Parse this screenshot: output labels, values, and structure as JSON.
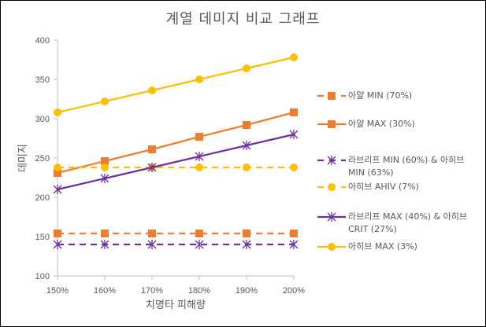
{
  "chart_data": {
    "type": "line",
    "title": "계열 데미지 비교 그래프",
    "xlabel": "치명타 피해량",
    "ylabel": "데미지",
    "categories": [
      "150%",
      "160%",
      "170%",
      "180%",
      "190%",
      "200%"
    ],
    "ylim": [
      100,
      400
    ],
    "yticks": [
      100,
      150,
      200,
      250,
      300,
      350,
      400
    ],
    "grid": false,
    "legend_position": "right",
    "series": [
      {
        "name": "아얄 MIN (70%)",
        "color": "#ED7D31",
        "dash": true,
        "marker": "square",
        "values": [
          154,
          154,
          154,
          154,
          154,
          154
        ]
      },
      {
        "name": "아얄 MAX (30%)",
        "color": "#ED7D31",
        "dash": false,
        "marker": "square",
        "values": [
          231,
          246,
          261,
          277,
          292,
          308
        ]
      },
      {
        "name": "라브리프 MIN (60%) & 아히브 MIN (63%)",
        "color": "#7030A0",
        "dash": true,
        "marker": "star",
        "values": [
          140,
          140,
          140,
          140,
          140,
          140
        ]
      },
      {
        "name": "아히브 AHIV (7%)",
        "color": "#FFC000",
        "dash": true,
        "marker": "circle",
        "values": [
          238,
          238,
          238,
          238,
          238,
          238
        ]
      },
      {
        "name": "라브리프 MAX (40%) & 아히브 CRIT (27%)",
        "color": "#7030A0",
        "dash": false,
        "marker": "star",
        "values": [
          210,
          224,
          238,
          252,
          266,
          280
        ]
      },
      {
        "name": "아히브 MAX (3%)",
        "color": "#FFC000",
        "dash": false,
        "marker": "circle",
        "values": [
          308,
          322,
          336,
          350,
          364,
          378
        ]
      }
    ]
  }
}
